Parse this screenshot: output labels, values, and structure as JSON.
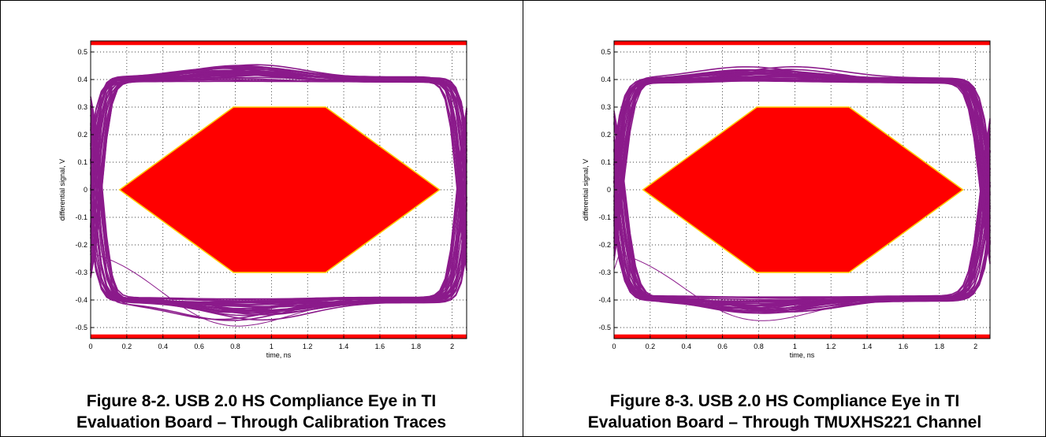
{
  "figures": [
    {
      "caption_line1": "Figure 8-2. USB 2.0 HS Compliance Eye in TI",
      "caption_line2": "Evaluation Board – Through Calibration Traces"
    },
    {
      "caption_line1": "Figure 8-3. USB 2.0 HS Compliance Eye in TI",
      "caption_line2": "Evaluation Board – Through TMUXHS221 Channel"
    }
  ],
  "colors": {
    "eye_traces": "#8b1a8b",
    "mask": "#ff0000",
    "mask_edge": "#ffcc00",
    "grid": "#000000"
  },
  "chart_data": [
    {
      "type": "line",
      "title": "",
      "xlabel": "time, ns",
      "ylabel": "differential signal, V",
      "xlim": [
        0,
        2.08
      ],
      "ylim": [
        -0.54,
        0.54
      ],
      "xticks": [
        0,
        0.2,
        0.4,
        0.6,
        0.8,
        1,
        1.2,
        1.4,
        1.6,
        1.8,
        2
      ],
      "xtick_labels": [
        "0",
        "0.2",
        "0.4",
        "0.6",
        "0.8",
        "1",
        "1.2",
        "1.4",
        "1.6",
        "1.8",
        "2"
      ],
      "yticks": [
        0.5,
        0.4,
        0.3,
        0.2,
        0.1,
        0,
        -0.1,
        -0.2,
        -0.3,
        -0.4,
        -0.5
      ],
      "ytick_labels": [
        "0.5",
        "0.4",
        "0.3",
        "0.2",
        "0.1",
        "0",
        "-0.1",
        "-0.2",
        "-0.3",
        "-0.4",
        "-0.5"
      ],
      "grid": true,
      "mask": {
        "eye_hexagon": [
          [
            0.16,
            0
          ],
          [
            0.79,
            0.3
          ],
          [
            1.3,
            0.3
          ],
          [
            1.93,
            0
          ],
          [
            1.3,
            -0.3
          ],
          [
            0.79,
            -0.3
          ]
        ],
        "top_band": [
          0.525,
          0.54
        ],
        "bottom_band": [
          -0.54,
          -0.525
        ]
      },
      "eye": {
        "high_level": 0.4,
        "low_level": -0.4,
        "upper_overshoot_peak": 0.45,
        "lower_undershoot_peak": -0.465,
        "transition_width_ns": 0.1,
        "outlier_min": -0.51
      }
    },
    {
      "type": "line",
      "title": "",
      "xlabel": "time, ns",
      "ylabel": "differential signal, V",
      "xlim": [
        0,
        2.08
      ],
      "ylim": [
        -0.54,
        0.54
      ],
      "xticks": [
        0,
        0.2,
        0.4,
        0.6,
        0.8,
        1,
        1.2,
        1.4,
        1.6,
        1.8,
        2
      ],
      "xtick_labels": [
        "0",
        "0.2",
        "0.4",
        "0.6",
        "0.8",
        "1",
        "1.2",
        "1.4",
        "1.6",
        "1.8",
        "2"
      ],
      "yticks": [
        0.5,
        0.4,
        0.3,
        0.2,
        0.1,
        0,
        -0.1,
        -0.2,
        -0.3,
        -0.4,
        -0.5
      ],
      "ytick_labels": [
        "0.5",
        "0.4",
        "0.3",
        "0.2",
        "0.1",
        "0",
        "-0.1",
        "-0.2",
        "-0.3",
        "-0.4",
        "-0.5"
      ],
      "grid": true,
      "mask": {
        "eye_hexagon": [
          [
            0.16,
            0
          ],
          [
            0.79,
            0.3
          ],
          [
            1.3,
            0.3
          ],
          [
            1.93,
            0
          ],
          [
            1.3,
            -0.3
          ],
          [
            0.79,
            -0.3
          ]
        ],
        "top_band": [
          0.525,
          0.54
        ],
        "bottom_band": [
          -0.54,
          -0.525
        ]
      },
      "eye": {
        "high_level": 0.395,
        "low_level": -0.39,
        "upper_overshoot_peak": 0.44,
        "lower_undershoot_peak": -0.445,
        "transition_width_ns": 0.12,
        "outlier_min": -0.49
      }
    }
  ]
}
